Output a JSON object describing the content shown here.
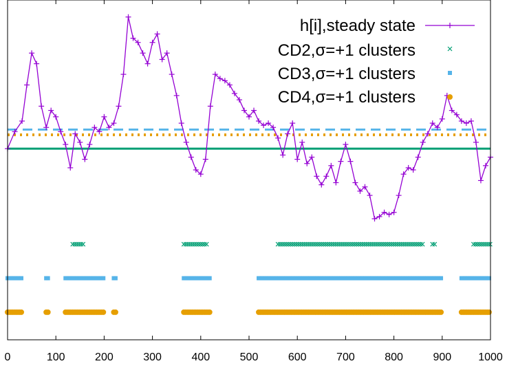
{
  "chart_data": {
    "type": "scatter",
    "xlim": [
      0,
      1000
    ],
    "ylim": [
      -9,
      7
    ],
    "xticks": [
      0,
      100,
      200,
      300,
      400,
      500,
      600,
      700,
      800,
      900,
      1000
    ],
    "xtick_labels": [
      "0",
      "100",
      "200",
      "300",
      "400",
      "500",
      "600",
      "700",
      "800",
      "900",
      "1000"
    ],
    "grid": false,
    "legend_position": "top-right",
    "colors": {
      "height": "#9400d3",
      "cd2": "#009e73",
      "cd3": "#56b4e9",
      "cd4": "#e69f00"
    },
    "reference_lines": [
      {
        "y": 0.0,
        "color": "#009e73",
        "style": "solid"
      },
      {
        "y": 0.9,
        "color": "#56b4e9",
        "style": "dashed"
      },
      {
        "y": 0.65,
        "color": "#e69f00",
        "style": "dotted"
      }
    ],
    "series": [
      {
        "name": "h[i],steady state",
        "marker": "plus",
        "points": [
          [
            0,
            0
          ],
          [
            15,
            0.8
          ],
          [
            30,
            1.3
          ],
          [
            40,
            3.0
          ],
          [
            50,
            4.5
          ],
          [
            60,
            4.0
          ],
          [
            70,
            2.0
          ],
          [
            80,
            1.0
          ],
          [
            90,
            1.8
          ],
          [
            100,
            1.5
          ],
          [
            110,
            0.8
          ],
          [
            120,
            0.2
          ],
          [
            130,
            -0.9
          ],
          [
            140,
            0.7
          ],
          [
            150,
            0.3
          ],
          [
            160,
            -0.5
          ],
          [
            170,
            0.2
          ],
          [
            180,
            1.0
          ],
          [
            190,
            0.8
          ],
          [
            200,
            1.5
          ],
          [
            210,
            1.0
          ],
          [
            220,
            1.2
          ],
          [
            230,
            2.0
          ],
          [
            240,
            3.5
          ],
          [
            250,
            6.2
          ],
          [
            260,
            5.2
          ],
          [
            270,
            5.0
          ],
          [
            280,
            4.5
          ],
          [
            290,
            4.0
          ],
          [
            300,
            5.0
          ],
          [
            310,
            5.4
          ],
          [
            320,
            4.2
          ],
          [
            330,
            4.5
          ],
          [
            340,
            3.5
          ],
          [
            350,
            2.5
          ],
          [
            360,
            1.2
          ],
          [
            370,
            0.3
          ],
          [
            380,
            -0.4
          ],
          [
            390,
            -1.0
          ],
          [
            400,
            -1.2
          ],
          [
            410,
            -0.5
          ],
          [
            420,
            2.0
          ],
          [
            430,
            3.5
          ],
          [
            440,
            3.3
          ],
          [
            450,
            3.2
          ],
          [
            460,
            3.0
          ],
          [
            470,
            2.6
          ],
          [
            480,
            2.3
          ],
          [
            490,
            1.8
          ],
          [
            500,
            1.5
          ],
          [
            510,
            1.8
          ],
          [
            520,
            1.3
          ],
          [
            530,
            1.1
          ],
          [
            540,
            1.2
          ],
          [
            550,
            1.0
          ],
          [
            560,
            0.5
          ],
          [
            570,
            -0.3
          ],
          [
            580,
            0.7
          ],
          [
            590,
            1.2
          ],
          [
            600,
            -0.5
          ],
          [
            610,
            0.3
          ],
          [
            620,
            -0.7
          ],
          [
            630,
            -0.4
          ],
          [
            640,
            -1.3
          ],
          [
            650,
            -1.7
          ],
          [
            660,
            -1.3
          ],
          [
            670,
            -0.8
          ],
          [
            680,
            -1.6
          ],
          [
            690,
            -0.6
          ],
          [
            700,
            0.2
          ],
          [
            710,
            -0.6
          ],
          [
            720,
            -1.6
          ],
          [
            730,
            -2.0
          ],
          [
            740,
            -1.8
          ],
          [
            750,
            -2.2
          ],
          [
            760,
            -3.3
          ],
          [
            770,
            -3.2
          ],
          [
            780,
            -3.0
          ],
          [
            790,
            -3.1
          ],
          [
            800,
            -3.0
          ],
          [
            810,
            -2.2
          ],
          [
            820,
            -1.2
          ],
          [
            830,
            -0.9
          ],
          [
            840,
            -1.0
          ],
          [
            850,
            -0.4
          ],
          [
            860,
            0.3
          ],
          [
            870,
            0.7
          ],
          [
            880,
            1.2
          ],
          [
            890,
            1.0
          ],
          [
            900,
            1.4
          ],
          [
            910,
            2.5
          ],
          [
            920,
            1.8
          ],
          [
            930,
            1.6
          ],
          [
            940,
            1.3
          ],
          [
            950,
            1.2
          ],
          [
            960,
            1.3
          ],
          [
            970,
            0.3
          ],
          [
            980,
            -1.5
          ],
          [
            990,
            -0.8
          ],
          [
            1000,
            -0.4
          ]
        ]
      },
      {
        "name": "CD2,σ=+1 clusters",
        "marker": "x",
        "y": -4.5,
        "segments": [
          [
            135,
            160
          ],
          [
            365,
            415
          ],
          [
            560,
            860
          ],
          [
            880,
            885
          ],
          [
            965,
            1000
          ]
        ]
      },
      {
        "name": "CD3,σ=+1 clusters",
        "marker": "square",
        "y": -6.1,
        "segments": [
          [
            0,
            30
          ],
          [
            80,
            85
          ],
          [
            120,
            200
          ],
          [
            220,
            225
          ],
          [
            365,
            420
          ],
          [
            520,
            900
          ],
          [
            940,
            1000
          ]
        ]
      },
      {
        "name": "CD4,σ=+1 clusters",
        "marker": "circle",
        "y": -7.7,
        "segments": [
          [
            0,
            30
          ],
          [
            80,
            85
          ],
          [
            120,
            200
          ],
          [
            220,
            225
          ],
          [
            365,
            420
          ],
          [
            520,
            900
          ],
          [
            940,
            1000
          ]
        ]
      }
    ]
  }
}
